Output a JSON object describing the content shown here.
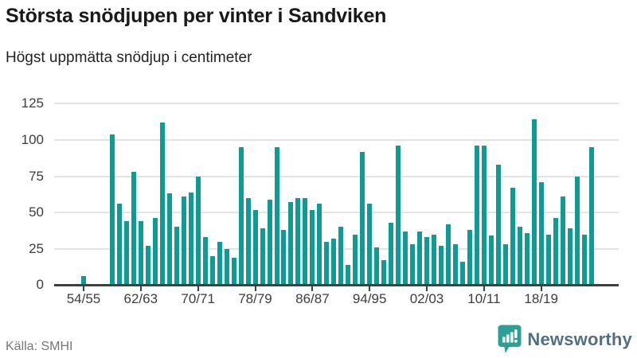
{
  "header": {
    "title": "Största snödjupen per vinter i Sandviken",
    "subtitle": "Högst uppmätta snödjup i centimeter"
  },
  "footer": {
    "source": "Källa: SMHI",
    "logo_text": "Newsworthy"
  },
  "colors": {
    "bar": "#0f9b93",
    "axis": "#3f3f3f",
    "grid": "#e3e3e3",
    "tick_label": "#3d3d3d",
    "title": "#191919",
    "source_text": "#767676",
    "logo_bubble": "#2da096",
    "logo_text": "#527082"
  },
  "chart_data": {
    "type": "bar",
    "title": "Största snödjupen per vinter i Sandviken",
    "subtitle": "Högst uppmätta snödjup i centimeter",
    "unit": "cm",
    "ylim": [
      0,
      125
    ],
    "yticks": [
      0,
      25,
      50,
      75,
      100,
      125
    ],
    "xtick_labels": [
      "54/55",
      "62/63",
      "70/71",
      "78/79",
      "86/87",
      "94/95",
      "02/03",
      "10/11",
      "18/19"
    ],
    "grid": "horizontal",
    "legend": "none",
    "series": [
      {
        "name": "Högsta snödjup per vinter (cm)",
        "points": [
          {
            "season": "54/55",
            "value": 6
          },
          {
            "season": "58/59",
            "value": 104
          },
          {
            "season": "59/60",
            "value": 56
          },
          {
            "season": "60/61",
            "value": 44
          },
          {
            "season": "61/62",
            "value": 78
          },
          {
            "season": "62/63",
            "value": 44
          },
          {
            "season": "63/64",
            "value": 27
          },
          {
            "season": "64/65",
            "value": 46
          },
          {
            "season": "65/66",
            "value": 112
          },
          {
            "season": "66/67",
            "value": 63
          },
          {
            "season": "67/68",
            "value": 40
          },
          {
            "season": "68/69",
            "value": 61
          },
          {
            "season": "69/70",
            "value": 64
          },
          {
            "season": "70/71",
            "value": 75
          },
          {
            "season": "71/72",
            "value": 33
          },
          {
            "season": "72/73",
            "value": 20
          },
          {
            "season": "73/74",
            "value": 30
          },
          {
            "season": "74/75",
            "value": 25
          },
          {
            "season": "75/76",
            "value": 19
          },
          {
            "season": "76/77",
            "value": 95
          },
          {
            "season": "77/78",
            "value": 60
          },
          {
            "season": "78/79",
            "value": 52
          },
          {
            "season": "79/80",
            "value": 39
          },
          {
            "season": "80/81",
            "value": 59
          },
          {
            "season": "81/82",
            "value": 95
          },
          {
            "season": "82/83",
            "value": 38
          },
          {
            "season": "83/84",
            "value": 57
          },
          {
            "season": "84/85",
            "value": 60
          },
          {
            "season": "85/86",
            "value": 60
          },
          {
            "season": "86/87",
            "value": 52
          },
          {
            "season": "87/88",
            "value": 56
          },
          {
            "season": "88/89",
            "value": 30
          },
          {
            "season": "89/90",
            "value": 32
          },
          {
            "season": "90/91",
            "value": 40
          },
          {
            "season": "91/92",
            "value": 14
          },
          {
            "season": "92/93",
            "value": 35
          },
          {
            "season": "93/94",
            "value": 92
          },
          {
            "season": "94/95",
            "value": 56
          },
          {
            "season": "95/96",
            "value": 26
          },
          {
            "season": "96/97",
            "value": 17
          },
          {
            "season": "97/98",
            "value": 43
          },
          {
            "season": "98/99",
            "value": 96
          },
          {
            "season": "99/00",
            "value": 37
          },
          {
            "season": "00/01",
            "value": 28
          },
          {
            "season": "01/02",
            "value": 37
          },
          {
            "season": "02/03",
            "value": 33
          },
          {
            "season": "03/04",
            "value": 35
          },
          {
            "season": "04/05",
            "value": 27
          },
          {
            "season": "05/06",
            "value": 42
          },
          {
            "season": "06/07",
            "value": 28
          },
          {
            "season": "07/08",
            "value": 16
          },
          {
            "season": "08/09",
            "value": 38
          },
          {
            "season": "09/10",
            "value": 96
          },
          {
            "season": "10/11",
            "value": 96
          },
          {
            "season": "11/12",
            "value": 34
          },
          {
            "season": "12/13",
            "value": 83
          },
          {
            "season": "13/14",
            "value": 28
          },
          {
            "season": "14/15",
            "value": 67
          },
          {
            "season": "15/16",
            "value": 40
          },
          {
            "season": "16/17",
            "value": 36
          },
          {
            "season": "17/18",
            "value": 114
          },
          {
            "season": "18/19",
            "value": 71
          },
          {
            "season": "19/20",
            "value": 35
          },
          {
            "season": "20/21",
            "value": 46
          },
          {
            "season": "21/22",
            "value": 61
          },
          {
            "season": "22/23",
            "value": 39
          },
          {
            "season": "23/24",
            "value": 75
          },
          {
            "season": "24/25",
            "value": 35
          },
          {
            "season": "25/26",
            "value": 95
          }
        ]
      }
    ]
  }
}
